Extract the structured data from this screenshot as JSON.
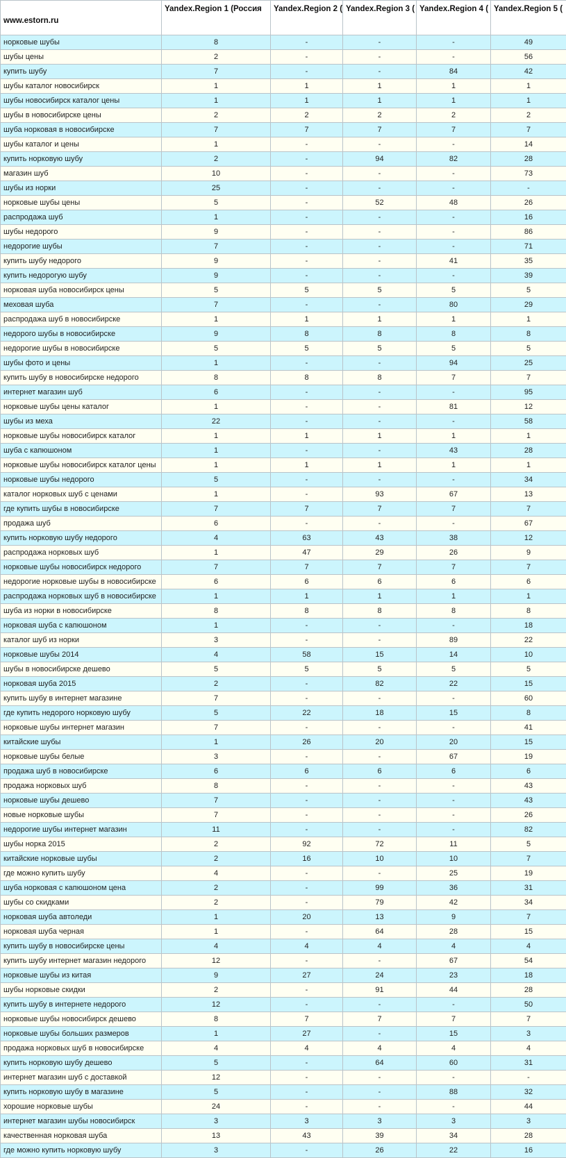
{
  "header": {
    "site": "www.estorn.ru",
    "columns": [
      "Yandex.Region 1 (Россия",
      "Yandex.Region 2 (",
      "Yandex.Region 3 (",
      "Yandex.Region 4 (",
      "Yandex.Region 5 ("
    ]
  },
  "colors": {
    "row_odd": "#ccf5fd",
    "row_even": "#fffff2",
    "border": "#b9c3c9"
  },
  "rows": [
    [
      "норковые шубы",
      "8",
      "-",
      "-",
      "-",
      "49"
    ],
    [
      "шубы цены",
      "2",
      "-",
      "-",
      "-",
      "56"
    ],
    [
      "купить шубу",
      "7",
      "-",
      "-",
      "84",
      "42"
    ],
    [
      "шубы каталог новосибирск",
      "1",
      "1",
      "1",
      "1",
      "1"
    ],
    [
      "шубы новосибирск каталог цены",
      "1",
      "1",
      "1",
      "1",
      "1"
    ],
    [
      "шубы в новосибирске цены",
      "2",
      "2",
      "2",
      "2",
      "2"
    ],
    [
      "шуба норковая в новосибирске",
      "7",
      "7",
      "7",
      "7",
      "7"
    ],
    [
      "шубы каталог и цены",
      "1",
      "-",
      "-",
      "-",
      "14"
    ],
    [
      "купить норковую шубу",
      "2",
      "-",
      "94",
      "82",
      "28"
    ],
    [
      "магазин шуб",
      "10",
      "-",
      "-",
      "-",
      "73"
    ],
    [
      "шубы из норки",
      "25",
      "-",
      "-",
      "-",
      "-"
    ],
    [
      "норковые шубы цены",
      "5",
      "-",
      "52",
      "48",
      "26"
    ],
    [
      "распродажа шуб",
      "1",
      "-",
      "-",
      "-",
      "16"
    ],
    [
      "шубы недорого",
      "9",
      "-",
      "-",
      "-",
      "86"
    ],
    [
      "недорогие шубы",
      "7",
      "-",
      "-",
      "-",
      "71"
    ],
    [
      "купить шубу недорого",
      "9",
      "-",
      "-",
      "41",
      "35"
    ],
    [
      "купить недорогую шубу",
      "9",
      "-",
      "-",
      "-",
      "39"
    ],
    [
      "норковая шуба новосибирск цены",
      "5",
      "5",
      "5",
      "5",
      "5"
    ],
    [
      "меховая шуба",
      "7",
      "-",
      "-",
      "80",
      "29"
    ],
    [
      "распродажа шуб в новосибирске",
      "1",
      "1",
      "1",
      "1",
      "1"
    ],
    [
      "недорого шубы в новосибирске",
      "9",
      "8",
      "8",
      "8",
      "8"
    ],
    [
      "недорогие шубы в новосибирске",
      "5",
      "5",
      "5",
      "5",
      "5"
    ],
    [
      "шубы фото и цены",
      "1",
      "-",
      "-",
      "94",
      "25"
    ],
    [
      "купить шубу в новосибирске недорого",
      "8",
      "8",
      "8",
      "7",
      "7"
    ],
    [
      "интернет магазин шуб",
      "6",
      "-",
      "-",
      "-",
      "95"
    ],
    [
      "норковые шубы цены каталог",
      "1",
      "-",
      "-",
      "81",
      "12"
    ],
    [
      "шубы из меха",
      "22",
      "-",
      "-",
      "-",
      "58"
    ],
    [
      "норковые шубы новосибирск каталог",
      "1",
      "1",
      "1",
      "1",
      "1"
    ],
    [
      "шуба с капюшоном",
      "1",
      "-",
      "-",
      "43",
      "28"
    ],
    [
      "норковые шубы новосибирск каталог цены",
      "1",
      "1",
      "1",
      "1",
      "1"
    ],
    [
      "норковые шубы недорого",
      "5",
      "-",
      "-",
      "-",
      "34"
    ],
    [
      "каталог норковых шуб с ценами",
      "1",
      "-",
      "93",
      "67",
      "13"
    ],
    [
      "где купить шубы в новосибирске",
      "7",
      "7",
      "7",
      "7",
      "7"
    ],
    [
      "продажа шуб",
      "6",
      "-",
      "-",
      "-",
      "67"
    ],
    [
      "купить норковую шубу недорого",
      "4",
      "63",
      "43",
      "38",
      "12"
    ],
    [
      "распродажа норковых шуб",
      "1",
      "47",
      "29",
      "26",
      "9"
    ],
    [
      "норковые шубы новосибирск недорого",
      "7",
      "7",
      "7",
      "7",
      "7"
    ],
    [
      "недорогие норковые шубы в новосибирске",
      "6",
      "6",
      "6",
      "6",
      "6"
    ],
    [
      "распродажа норковых шуб в новосибирске",
      "1",
      "1",
      "1",
      "1",
      "1"
    ],
    [
      "шуба из норки в новосибирске",
      "8",
      "8",
      "8",
      "8",
      "8"
    ],
    [
      "норковая шуба с капюшоном",
      "1",
      "-",
      "-",
      "-",
      "18"
    ],
    [
      "каталог шуб из норки",
      "3",
      "-",
      "-",
      "89",
      "22"
    ],
    [
      "норковые шубы 2014",
      "4",
      "58",
      "15",
      "14",
      "10"
    ],
    [
      "шубы в новосибирске дешево",
      "5",
      "5",
      "5",
      "5",
      "5"
    ],
    [
      "норковая шуба 2015",
      "2",
      "-",
      "82",
      "22",
      "15"
    ],
    [
      "купить шубу в интернет магазине",
      "7",
      "-",
      "-",
      "-",
      "60"
    ],
    [
      "где купить недорого норковую шубу",
      "5",
      "22",
      "18",
      "15",
      "8"
    ],
    [
      "норковые шубы интернет магазин",
      "7",
      "-",
      "-",
      "-",
      "41"
    ],
    [
      "китайские шубы",
      "1",
      "26",
      "20",
      "20",
      "15"
    ],
    [
      "норковые шубы белые",
      "3",
      "-",
      "-",
      "67",
      "19"
    ],
    [
      "продажа шуб в новосибирске",
      "6",
      "6",
      "6",
      "6",
      "6"
    ],
    [
      "продажа норковых шуб",
      "8",
      "-",
      "-",
      "-",
      "43"
    ],
    [
      "норковые шубы дешево",
      "7",
      "-",
      "-",
      "-",
      "43"
    ],
    [
      "новые норковые шубы",
      "7",
      "-",
      "-",
      "-",
      "26"
    ],
    [
      "недорогие шубы интернет магазин",
      "11",
      "-",
      "-",
      "-",
      "82"
    ],
    [
      "шубы норка 2015",
      "2",
      "92",
      "72",
      "11",
      "5"
    ],
    [
      "китайские норковые шубы",
      "2",
      "16",
      "10",
      "10",
      "7"
    ],
    [
      "где можно купить шубу",
      "4",
      "-",
      "-",
      "25",
      "19"
    ],
    [
      "шуба норковая с капюшоном цена",
      "2",
      "-",
      "99",
      "36",
      "31"
    ],
    [
      "шубы со скидками",
      "2",
      "-",
      "79",
      "42",
      "34"
    ],
    [
      "норковая шуба автоледи",
      "1",
      "20",
      "13",
      "9",
      "7"
    ],
    [
      "норковая шуба черная",
      "1",
      "-",
      "64",
      "28",
      "15"
    ],
    [
      "купить шубу в новосибирске цены",
      "4",
      "4",
      "4",
      "4",
      "4"
    ],
    [
      "купить шубу интернет магазин недорого",
      "12",
      "-",
      "-",
      "67",
      "54"
    ],
    [
      "норковые шубы из китая",
      "9",
      "27",
      "24",
      "23",
      "18"
    ],
    [
      "шубы норковые скидки",
      "2",
      "-",
      "91",
      "44",
      "28"
    ],
    [
      "купить шубу в интернете недорого",
      "12",
      "-",
      "-",
      "-",
      "50"
    ],
    [
      "норковые шубы новосибирск дешево",
      "8",
      "7",
      "7",
      "7",
      "7"
    ],
    [
      "норковые шубы больших размеров",
      "1",
      "27",
      "-",
      "15",
      "3"
    ],
    [
      "продажа норковых шуб в новосибирске",
      "4",
      "4",
      "4",
      "4",
      "4"
    ],
    [
      "купить норковую шубу дешево",
      "5",
      "-",
      "64",
      "60",
      "31"
    ],
    [
      "интернет магазин шуб с доставкой",
      "12",
      "-",
      "-",
      "-",
      "-"
    ],
    [
      "купить норковую шубу в магазине",
      "5",
      "-",
      "-",
      "88",
      "32"
    ],
    [
      "хорошие норковые шубы",
      "24",
      "-",
      "-",
      "-",
      "44"
    ],
    [
      "интернет магазин шубы новосибирск",
      "3",
      "3",
      "3",
      "3",
      "3"
    ],
    [
      "качественная норковая шуба",
      "13",
      "43",
      "39",
      "34",
      "28"
    ],
    [
      "где можно купить норковую шубу",
      "3",
      "-",
      "26",
      "22",
      "16"
    ]
  ]
}
